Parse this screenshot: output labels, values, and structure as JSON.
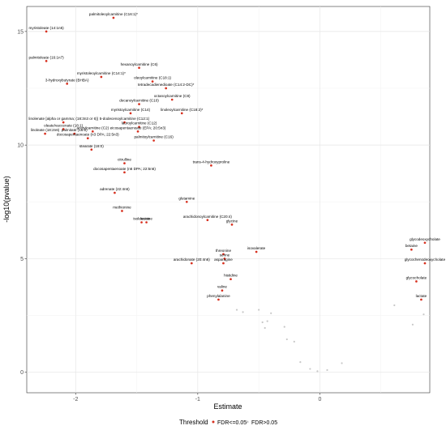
{
  "chart_data": {
    "type": "scatter",
    "xlabel": "Estimate",
    "ylabel": "-log10(pvalue)",
    "xlim": [
      -2.4,
      0.9
    ],
    "ylim": [
      -0.9,
      16.1
    ],
    "xticks": [
      -2,
      -1,
      0
    ],
    "xtick_labels": [
      "-2",
      "-1",
      "0"
    ],
    "yticks": [
      0,
      5,
      10,
      15
    ],
    "ytick_labels": [
      "0",
      "5",
      "10",
      "15"
    ],
    "grid": true,
    "legend": {
      "title": "Threshold",
      "position": "bottom",
      "entries": [
        {
          "label": "FDR<=0.05",
          "color": "#d7301f"
        },
        {
          "label": "FDR>0.05",
          "color": "#c8c8c8"
        }
      ]
    },
    "series": [
      {
        "name": "FDR<=0.05",
        "color": "#d7301f",
        "points": [
          {
            "x": -1.69,
            "y": 15.6,
            "label": "palmitoleoylcarnitine (C16:1)*"
          },
          {
            "x": -2.24,
            "y": 15.0,
            "label": "myristoleate (14:1n5)"
          },
          {
            "x": -2.24,
            "y": 13.7,
            "label": "palmitoleate (16:1n7)"
          },
          {
            "x": -1.48,
            "y": 13.4,
            "label": "hexanoylcarnitine (C6)"
          },
          {
            "x": -1.79,
            "y": 13.0,
            "label": "myristoleoylcarnitine (C14:1)*"
          },
          {
            "x": -2.07,
            "y": 12.7,
            "label": "3-hydroxybutyrate (BHBA)"
          },
          {
            "x": -1.37,
            "y": 12.8,
            "label": "oleoylcarnitine (C18:1)"
          },
          {
            "x": -1.26,
            "y": 12.5,
            "label": "tetradecadienedioate (C14:2-DC)*"
          },
          {
            "x": -1.21,
            "y": 12.0,
            "label": "octanoylcarnitine (C8)"
          },
          {
            "x": -1.48,
            "y": 11.8,
            "label": "decanoylcarnitine (C10)"
          },
          {
            "x": -1.13,
            "y": 11.4,
            "label": "linoleoylcarnitine (C18:2)*"
          },
          {
            "x": -1.55,
            "y": 11.4,
            "label": "myristoylcarnitine (C14)"
          },
          {
            "x": -1.6,
            "y": 11.0,
            "label": "5-dodecenoylcarnitine (C12:1)"
          },
          {
            "x": -2.1,
            "y": 11.0,
            "label": "linolenate [alpha or gamma; (18:3n3 or 6)]"
          },
          {
            "x": -2.1,
            "y": 10.7,
            "label": "oleate/vaccenate (18:1)"
          },
          {
            "x": -1.48,
            "y": 10.8,
            "label": "lauroylcarnitine (C12)"
          },
          {
            "x": -1.86,
            "y": 10.6,
            "label": "acetylcarnitine (C2)"
          },
          {
            "x": -1.49,
            "y": 10.6,
            "label": "eicosapentaenoate (EPA; 20:5n3)"
          },
          {
            "x": -2.01,
            "y": 10.5,
            "label": "palmitate (16:0)"
          },
          {
            "x": -2.25,
            "y": 10.5,
            "label": "linoleate (18:2n6)"
          },
          {
            "x": -1.9,
            "y": 10.3,
            "label": "docosapentaenoate (n3 DPA; 22:5n3)"
          },
          {
            "x": -1.36,
            "y": 10.2,
            "label": "palmitoylcarnitine (C16)"
          },
          {
            "x": -1.87,
            "y": 9.8,
            "label": "stearate (18:0)"
          },
          {
            "x": -0.89,
            "y": 9.1,
            "label": "trans-4-hydroxyproline"
          },
          {
            "x": -1.6,
            "y": 9.2,
            "label": "citrulline"
          },
          {
            "x": -1.6,
            "y": 8.8,
            "label": "docosapentaenoate (n6 DPA; 22:5n6)"
          },
          {
            "x": -1.68,
            "y": 7.9,
            "label": "adrenate (22:4n6)"
          },
          {
            "x": -1.09,
            "y": 7.5,
            "label": "glutamine"
          },
          {
            "x": -1.62,
            "y": 7.1,
            "label": "methionine"
          },
          {
            "x": -0.92,
            "y": 6.7,
            "label": "arachidonoylcarnitine (C20:4)"
          },
          {
            "x": -1.42,
            "y": 6.6,
            "label": "leucine"
          },
          {
            "x": -1.46,
            "y": 6.6,
            "label": "isoleucine"
          },
          {
            "x": -0.72,
            "y": 6.5,
            "label": "glycine"
          },
          {
            "x": -0.52,
            "y": 5.3,
            "label": "isovalerate"
          },
          {
            "x": -0.79,
            "y": 5.2,
            "label": "threonine"
          },
          {
            "x": -0.78,
            "y": 5.0,
            "label": "serine"
          },
          {
            "x": -0.79,
            "y": 4.8,
            "label": "asparagine"
          },
          {
            "x": -1.05,
            "y": 4.8,
            "label": "arachidonate (20:4n6)"
          },
          {
            "x": -0.73,
            "y": 4.1,
            "label": "histidine"
          },
          {
            "x": -0.8,
            "y": 3.6,
            "label": "valine"
          },
          {
            "x": -0.83,
            "y": 3.2,
            "label": "phenylalanine"
          },
          {
            "x": 0.86,
            "y": 5.7,
            "label": "glycodeoxycholate"
          },
          {
            "x": 0.75,
            "y": 5.4,
            "label": "betaine"
          },
          {
            "x": 0.86,
            "y": 4.8,
            "label": "glycochenodeoxycholate"
          },
          {
            "x": 0.79,
            "y": 4.0,
            "label": "glycocholate"
          },
          {
            "x": 0.83,
            "y": 3.2,
            "label": "lactate"
          }
        ]
      },
      {
        "name": "FDR>0.05",
        "color": "#c8c8c8",
        "points": [
          {
            "x": -0.68,
            "y": 2.75
          },
          {
            "x": -0.63,
            "y": 2.65
          },
          {
            "x": -0.5,
            "y": 2.75
          },
          {
            "x": -0.47,
            "y": 2.2
          },
          {
            "x": -0.45,
            "y": 1.95
          },
          {
            "x": -0.43,
            "y": 2.25
          },
          {
            "x": -0.4,
            "y": 2.6
          },
          {
            "x": -0.29,
            "y": 2.0
          },
          {
            "x": -0.27,
            "y": 1.45
          },
          {
            "x": -0.21,
            "y": 1.35
          },
          {
            "x": -0.16,
            "y": 0.45
          },
          {
            "x": -0.08,
            "y": 0.15
          },
          {
            "x": -0.02,
            "y": 0.05
          },
          {
            "x": 0.06,
            "y": 0.1
          },
          {
            "x": 0.18,
            "y": 0.4
          },
          {
            "x": 0.61,
            "y": 2.95
          },
          {
            "x": 0.76,
            "y": 2.1
          },
          {
            "x": 0.85,
            "y": 2.55
          }
        ]
      }
    ]
  }
}
